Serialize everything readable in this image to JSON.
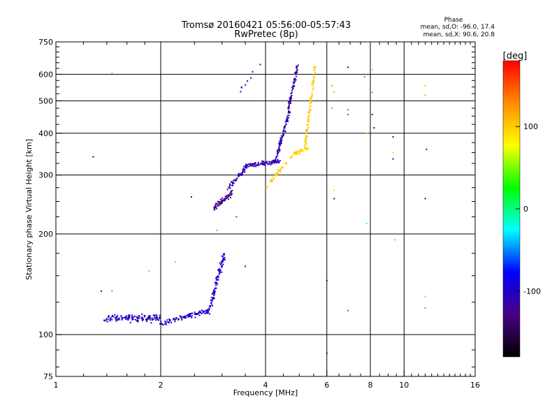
{
  "chart_data": {
    "type": "scatter",
    "title": "Tromsø 20160421 05:56:00-05:57:43",
    "subtitle": "RwPretec (8p)",
    "xlabel": "Frequency [MHz]",
    "ylabel": "Stationary phase Virtual Height [km]",
    "x_scale": "log",
    "y_scale": "log",
    "xlim": [
      1,
      16
    ],
    "ylim": [
      75,
      750
    ],
    "x_ticks": [
      1,
      2,
      4,
      6,
      8,
      10,
      16
    ],
    "x_tick_labels": [
      "1",
      "2",
      "4",
      "6",
      "8",
      "10",
      "16"
    ],
    "y_ticks": [
      75,
      100,
      200,
      300,
      400,
      500,
      600,
      750
    ],
    "y_tick_labels": [
      "75",
      "100",
      "200",
      "300",
      "400",
      "500",
      "600",
      "750"
    ],
    "grid": true,
    "stats": {
      "heading": "Phase",
      "line_o": "mean, sd,O: -96.0, 17.4",
      "line_x": "mean, sd,X:  90.6, 20.8"
    },
    "colorbar": {
      "label": "[deg]",
      "range": [
        -180,
        180
      ],
      "ticks": [
        100,
        0,
        -100
      ],
      "tick_labels": [
        "100",
        "0",
        "-100"
      ],
      "colors": [
        "#000000",
        "#4b0082",
        "#0000ff",
        "#00ffff",
        "#00ff00",
        "#ffff00",
        "#ff8c00",
        "#ff0000"
      ]
    },
    "traces": [
      {
        "x_start": 1.38,
        "x_end": 2.0,
        "y_start": 112,
        "y_end": 112,
        "jitter": 0.035,
        "count": 140,
        "phase": -105
      },
      {
        "x_start": 2.0,
        "x_end": 2.75,
        "y_start": 108,
        "y_end": 118,
        "jitter": 0.025,
        "count": 110,
        "phase": -100
      },
      {
        "x_start": 2.75,
        "x_end": 3.05,
        "y_start": 118,
        "y_end": 175,
        "jitter": 0.06,
        "count": 90,
        "phase": -95
      },
      {
        "x_start": 2.85,
        "x_end": 3.2,
        "y_start": 240,
        "y_end": 265,
        "jitter": 0.03,
        "count": 70,
        "phase": -125
      },
      {
        "x_start": 3.1,
        "x_end": 3.55,
        "y_start": 270,
        "y_end": 320,
        "jitter": 0.025,
        "count": 55,
        "phase": -110
      },
      {
        "x_start": 3.5,
        "x_end": 4.4,
        "y_start": 320,
        "y_end": 330,
        "jitter": 0.02,
        "count": 90,
        "phase": -110
      },
      {
        "x_start": 4.3,
        "x_end": 4.7,
        "y_start": 340,
        "y_end": 470,
        "jitter": 0.03,
        "count": 90,
        "phase": -110
      },
      {
        "x_start": 4.65,
        "x_end": 4.95,
        "y_start": 470,
        "y_end": 640,
        "jitter": 0.02,
        "count": 80,
        "phase": -110
      },
      {
        "x_start": 4.0,
        "x_end": 4.8,
        "y_start": 275,
        "y_end": 345,
        "jitter": 0.025,
        "count": 40,
        "phase": 95
      },
      {
        "x_start": 4.75,
        "x_end": 5.3,
        "y_start": 345,
        "y_end": 360,
        "jitter": 0.02,
        "count": 50,
        "phase": 95
      },
      {
        "x_start": 5.2,
        "x_end": 5.55,
        "y_start": 370,
        "y_end": 630,
        "jitter": 0.025,
        "count": 90,
        "phase": 100
      },
      {
        "x_start": 3.35,
        "x_end": 3.9,
        "y_start": 530,
        "y_end": 640,
        "jitter": 0.03,
        "count": 8,
        "phase": -110
      }
    ],
    "isolated_points": [
      {
        "x": 1.45,
        "y": 605,
        "phase": 110
      },
      {
        "x": 1.28,
        "y": 340,
        "phase": -110
      },
      {
        "x": 1.35,
        "y": 135,
        "phase": -100
      },
      {
        "x": 1.45,
        "y": 135,
        "phase": 140
      },
      {
        "x": 1.85,
        "y": 155,
        "phase": 40
      },
      {
        "x": 2.2,
        "y": 165,
        "phase": 40
      },
      {
        "x": 2.45,
        "y": 258,
        "phase": -100
      },
      {
        "x": 2.9,
        "y": 205,
        "phase": -30
      },
      {
        "x": 3.3,
        "y": 225,
        "phase": -60
      },
      {
        "x": 3.5,
        "y": 160,
        "phase": -120
      },
      {
        "x": 6.0,
        "y": 145,
        "phase": -100
      },
      {
        "x": 6.0,
        "y": 88,
        "phase": -100
      },
      {
        "x": 6.3,
        "y": 270,
        "phase": 60
      },
      {
        "x": 6.3,
        "y": 255,
        "phase": -140
      },
      {
        "x": 6.2,
        "y": 555,
        "phase": 120
      },
      {
        "x": 6.3,
        "y": 530,
        "phase": 110
      },
      {
        "x": 6.2,
        "y": 475,
        "phase": 130
      },
      {
        "x": 6.9,
        "y": 630,
        "phase": -120
      },
      {
        "x": 6.9,
        "y": 470,
        "phase": 150
      },
      {
        "x": 6.9,
        "y": 455,
        "phase": 160
      },
      {
        "x": 6.9,
        "y": 118,
        "phase": 160
      },
      {
        "x": 7.7,
        "y": 590,
        "phase": 150
      },
      {
        "x": 7.8,
        "y": 400,
        "phase": 100
      },
      {
        "x": 7.8,
        "y": 215,
        "phase": -20
      },
      {
        "x": 8.1,
        "y": 620,
        "phase": 100
      },
      {
        "x": 8.1,
        "y": 530,
        "phase": -40
      },
      {
        "x": 8.1,
        "y": 455,
        "phase": -110
      },
      {
        "x": 8.2,
        "y": 415,
        "phase": -170
      },
      {
        "x": 9.3,
        "y": 390,
        "phase": -100
      },
      {
        "x": 9.3,
        "y": 335,
        "phase": -130
      },
      {
        "x": 9.3,
        "y": 350,
        "phase": 100
      },
      {
        "x": 9.4,
        "y": 192,
        "phase": 110
      },
      {
        "x": 11.5,
        "y": 555,
        "phase": 110
      },
      {
        "x": 11.5,
        "y": 520,
        "phase": 120
      },
      {
        "x": 11.6,
        "y": 358,
        "phase": -120
      },
      {
        "x": 11.5,
        "y": 255,
        "phase": -90
      },
      {
        "x": 11.5,
        "y": 130,
        "phase": 110
      },
      {
        "x": 11.5,
        "y": 120,
        "phase": -40
      }
    ]
  }
}
